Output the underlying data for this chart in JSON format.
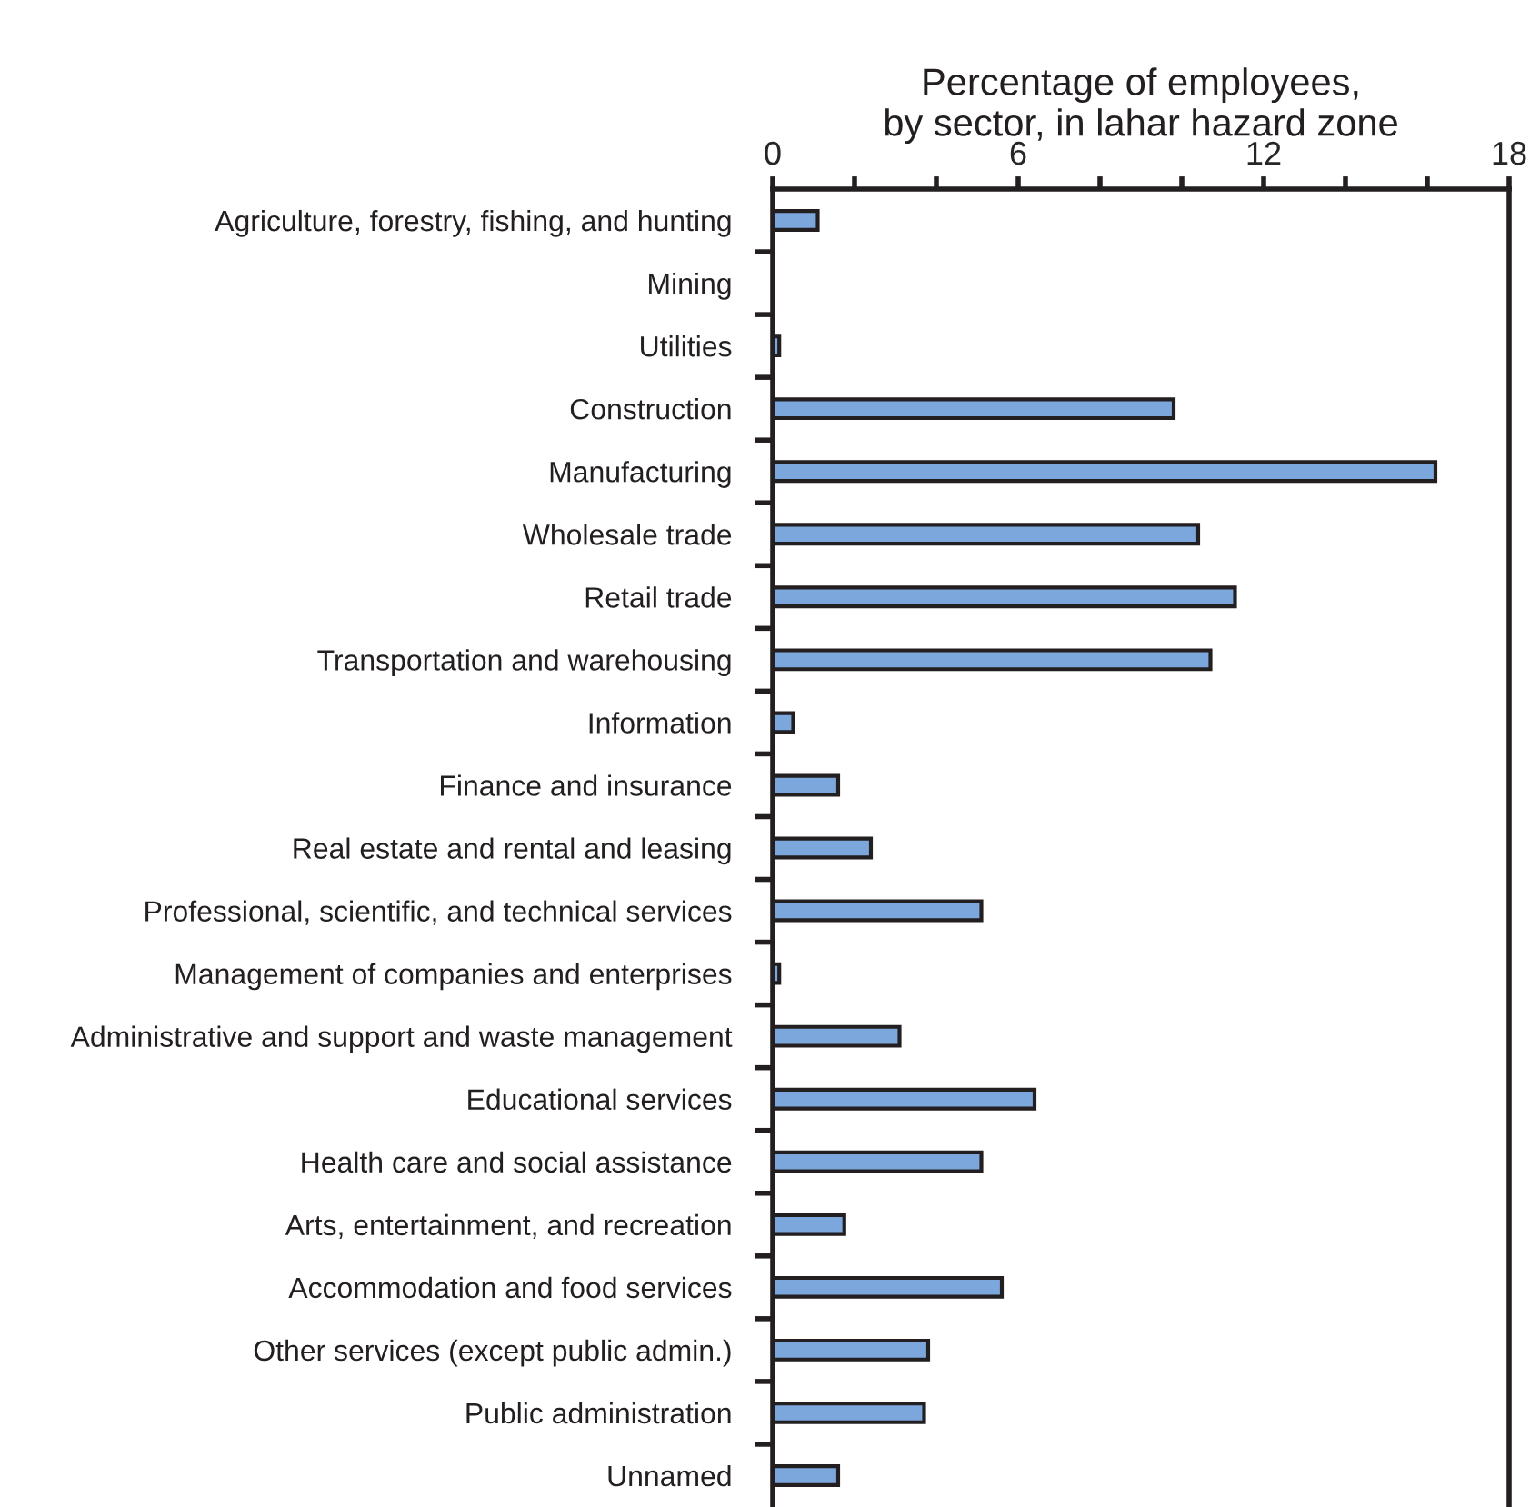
{
  "chart_data": {
    "type": "bar",
    "orientation": "horizontal",
    "xlabel": "Percentage of employees,\nby sector, in lahar hazard zone",
    "categories": [
      "Agriculture, forestry, fishing, and hunting",
      "Mining",
      "Utilities",
      "Construction",
      "Manufacturing",
      "Wholesale trade",
      "Retail trade",
      "Transportation and warehousing",
      "Information",
      "Finance and insurance",
      "Real estate and rental and leasing",
      "Professional, scientific, and technical services",
      "Management of companies and enterprises",
      "Administrative and support and waste management",
      "Educational services",
      "Health care and social assistance",
      "Arts, entertainment, and recreation",
      "Accommodation and food services",
      "Other services (except public admin.)",
      "Public administration",
      "Unnamed"
    ],
    "values": [
      1.1,
      0,
      0.16,
      9.8,
      16.2,
      10.4,
      11.3,
      10.7,
      0.5,
      1.6,
      2.4,
      5.1,
      0.16,
      3.1,
      6.4,
      5.1,
      1.75,
      5.6,
      3.8,
      3.7,
      1.6
    ],
    "color": "#7ba7dc",
    "xlim": [
      0,
      18
    ],
    "xticks": [
      0,
      {
        "value": 2,
        "label": null
      },
      {
        "value": 4,
        "label": null
      },
      6,
      {
        "value": 8,
        "label": null
      },
      {
        "value": 10,
        "label": null
      },
      12,
      {
        "value": 14,
        "label": null
      },
      {
        "value": 16,
        "label": null
      },
      18
    ],
    "grid": false,
    "legend": false
  }
}
